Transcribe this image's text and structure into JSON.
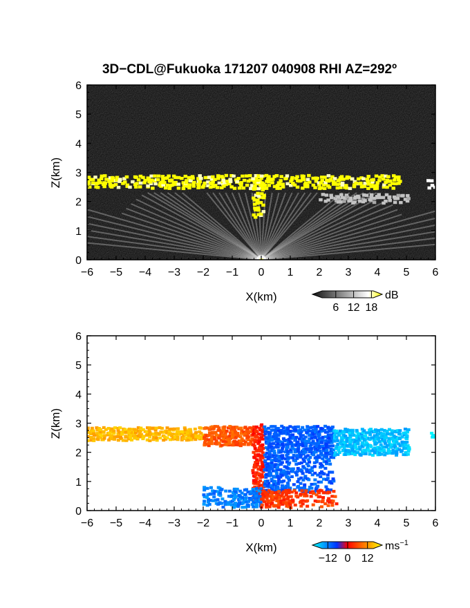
{
  "figure": {
    "title": "3D−CDL@Fukuoka 171207 040908 RHI AZ=292º"
  },
  "chart_data": [
    {
      "type": "heatmap",
      "panel": "reflectivity",
      "xlabel": "X(km)",
      "ylabel": "Z(km)",
      "xlim": [
        -6,
        6
      ],
      "ylim": [
        0,
        6
      ],
      "x_ticks": [
        "−6",
        "−5",
        "−4",
        "−3",
        "−2",
        "−1",
        "0",
        "1",
        "2",
        "3",
        "4",
        "5",
        "6"
      ],
      "y_ticks": [
        "0",
        "1",
        "2",
        "3",
        "4",
        "5",
        "6"
      ],
      "grid": false,
      "colorbar": {
        "unit": "dB",
        "ticks": [
          "6",
          "12",
          "18"
        ],
        "tick_values": [
          6,
          12,
          18
        ],
        "range": [
          0,
          20
        ],
        "colors": [
          "#111111",
          "#ffffff",
          "#ffff00"
        ]
      },
      "features": [
        {
          "name": "cloud layer",
          "x": [
            -6.0,
            4.8
          ],
          "z": [
            2.45,
            2.9
          ],
          "value": 20
        },
        {
          "name": "upper layer far right",
          "x": [
            5.7,
            6.0
          ],
          "z": [
            2.45,
            2.75
          ],
          "value": 16
        },
        {
          "name": "central column",
          "x": [
            -0.3,
            0.1
          ],
          "z": [
            1.45,
            2.9
          ],
          "value": 20
        },
        {
          "name": "lower right layer",
          "x": [
            2.0,
            5.1
          ],
          "z": [
            1.95,
            2.25
          ],
          "value": 12
        },
        {
          "name": "radar origin",
          "x": [
            0.0,
            0.0
          ],
          "z": [
            0.0,
            0.0
          ],
          "value": 18
        }
      ]
    },
    {
      "type": "heatmap",
      "panel": "doppler velocity",
      "xlabel": "X(km)",
      "ylabel": "Z(km)",
      "xlim": [
        -6,
        6
      ],
      "ylim": [
        0,
        6
      ],
      "x_ticks": [
        "−6",
        "−5",
        "−4",
        "−3",
        "−2",
        "−1",
        "0",
        "1",
        "2",
        "3",
        "4",
        "5",
        "6"
      ],
      "y_ticks": [
        "0",
        "1",
        "2",
        "3",
        "4",
        "5",
        "6"
      ],
      "grid": false,
      "colorbar": {
        "unit": "ms",
        "unit_exponent": "−1",
        "ticks": [
          "−12",
          "0",
          "12"
        ],
        "tick_values": [
          -12,
          0,
          12
        ],
        "range": [
          -18,
          18
        ],
        "colors": [
          "#00ffff",
          "#0033ff",
          "#ff0000",
          "#ffff00"
        ]
      },
      "features": [
        {
          "name": "upper layer left",
          "x": [
            -6.0,
            -2.0
          ],
          "z": [
            2.4,
            2.85
          ],
          "velocity": 13
        },
        {
          "name": "upper layer mid-left",
          "x": [
            -2.0,
            -0.3
          ],
          "z": [
            2.2,
            2.9
          ],
          "velocity": 6
        },
        {
          "name": "central updraft",
          "x": [
            -0.3,
            0.1
          ],
          "z": [
            0.3,
            2.95
          ],
          "velocity": 2
        },
        {
          "name": "upper layer right",
          "x": [
            0.1,
            2.5
          ],
          "z": [
            0.6,
            2.9
          ],
          "velocity": -8
        },
        {
          "name": "upper layer far right",
          "x": [
            2.5,
            5.1
          ],
          "z": [
            1.9,
            2.8
          ],
          "velocity": -14
        },
        {
          "name": "low-level inflow",
          "x": [
            -2.0,
            0.0
          ],
          "z": [
            0.1,
            0.8
          ],
          "velocity": -10
        },
        {
          "name": "low-level outflow",
          "x": [
            0.0,
            2.6
          ],
          "z": [
            0.1,
            0.7
          ],
          "velocity": 4
        },
        {
          "name": "edge echo far right",
          "x": [
            5.8,
            6.0
          ],
          "z": [
            2.45,
            2.7
          ],
          "velocity": -16
        }
      ]
    }
  ]
}
